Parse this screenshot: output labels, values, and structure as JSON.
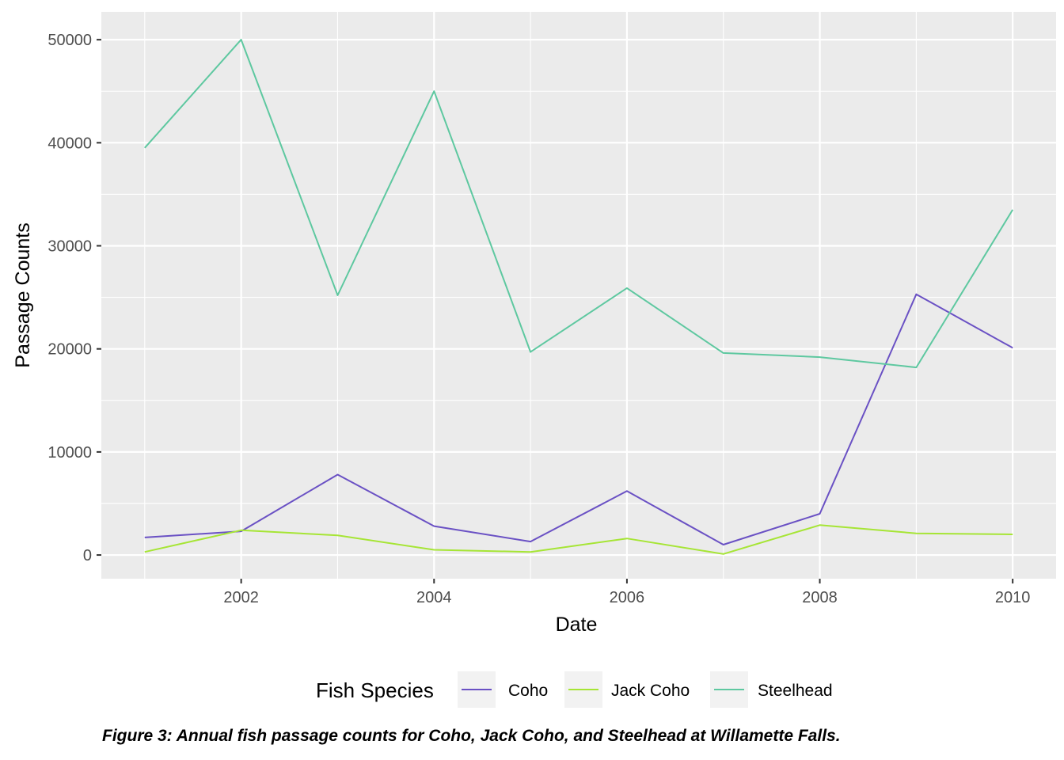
{
  "chart_data": {
    "type": "line",
    "xlabel": "Date",
    "ylabel": "Passage Counts",
    "x": [
      2001,
      2002,
      2003,
      2004,
      2005,
      2006,
      2007,
      2008,
      2009,
      2010
    ],
    "xlim": [
      2000.55,
      2010.45
    ],
    "ylim": [
      -2300,
      52700
    ],
    "x_ticks": [
      2002,
      2004,
      2006,
      2008,
      2010
    ],
    "x_tick_labels": [
      "2002",
      "2004",
      "2006",
      "2008",
      "2010"
    ],
    "y_ticks": [
      0,
      10000,
      20000,
      30000,
      40000,
      50000
    ],
    "y_tick_labels": [
      "0",
      "10000",
      "20000",
      "30000",
      "40000",
      "50000"
    ],
    "grid": true,
    "legend": {
      "title": "Fish Species",
      "placement": "bottom"
    },
    "series": [
      {
        "name": "Coho",
        "color": "#6a51c4",
        "values": [
          1700,
          2300,
          7800,
          2800,
          1300,
          6200,
          1000,
          4000,
          25300,
          20100
        ]
      },
      {
        "name": "Jack Coho",
        "color": "#a6e535",
        "values": [
          300,
          2400,
          1900,
          500,
          300,
          1600,
          100,
          2900,
          2100,
          2000
        ]
      },
      {
        "name": "Steelhead",
        "color": "#5ec8a0",
        "values": [
          39500,
          50000,
          25200,
          45000,
          19700,
          25900,
          19600,
          19200,
          18200,
          33500
        ]
      }
    ]
  },
  "caption": "Figure 3: Annual fish passage counts for Coho, Jack Coho, and Steelhead at Willamette Falls."
}
